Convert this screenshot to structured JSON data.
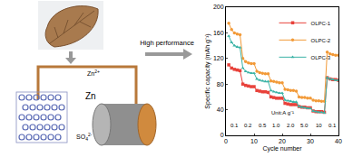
{
  "chart_data": {
    "type": "line",
    "x_label": "Cycle number",
    "y_label": "Specific capacity (mAh g⁻¹)",
    "x": [
      1,
      2,
      3,
      4,
      5,
      6,
      7,
      8,
      9,
      10,
      11,
      12,
      13,
      14,
      15,
      16,
      17,
      18,
      19,
      20,
      21,
      22,
      23,
      24,
      25,
      26,
      27,
      28,
      29,
      30,
      31,
      32,
      33,
      34,
      35,
      36,
      37,
      38,
      39,
      40
    ],
    "series": [
      {
        "name": "OLPC-1",
        "color": "#e8413a",
        "marker": "square",
        "values": [
          110,
          105,
          103,
          102,
          101,
          80,
          78,
          77,
          76,
          76,
          70,
          69,
          68,
          68,
          67,
          60,
          59,
          58,
          58,
          58,
          50,
          49,
          48,
          48,
          48,
          45,
          44,
          44,
          43,
          43,
          38,
          37,
          37,
          37,
          36,
          90,
          88,
          87,
          87,
          86
        ]
      },
      {
        "name": "OLPC-2",
        "color": "#f29a38",
        "marker": "circle",
        "values": [
          175,
          165,
          160,
          158,
          157,
          120,
          115,
          113,
          112,
          112,
          100,
          98,
          97,
          96,
          96,
          85,
          84,
          83,
          82,
          82,
          72,
          71,
          70,
          70,
          69,
          60,
          59,
          59,
          58,
          58,
          55,
          54,
          54,
          53,
          53,
          130,
          127,
          126,
          125,
          125
        ]
      },
      {
        "name": "OLPC-3",
        "color": "#3bb3a6",
        "marker": "triangle-up",
        "values": [
          155,
          145,
          140,
          138,
          137,
          105,
          100,
          98,
          97,
          97,
          88,
          86,
          85,
          84,
          84,
          70,
          68,
          67,
          66,
          66,
          55,
          54,
          53,
          52,
          52,
          45,
          44,
          43,
          42,
          42,
          38,
          37,
          36,
          36,
          35,
          90,
          88,
          87,
          86,
          86
        ]
      }
    ],
    "xlim": [
      0,
      40
    ],
    "xticks": [
      0,
      10,
      20,
      30,
      40
    ],
    "ylim": [
      0,
      200
    ],
    "yticks": [
      0,
      40,
      80,
      120,
      160,
      200
    ],
    "legend": "upper right",
    "rate_labels": [
      "0.1",
      "0.2",
      "0.5",
      "1.0",
      "2.0",
      "5.0",
      "10",
      "0.1"
    ],
    "annotations": [
      "Unit:A g⁻¹"
    ]
  },
  "diagram": {
    "arrow_label": "High performance",
    "cation": {
      "base": "Zn",
      "sup": "2+"
    },
    "anion": {
      "base": "SO",
      "sub": "4",
      "sup": "2-"
    },
    "electrode_label": "Zn"
  }
}
